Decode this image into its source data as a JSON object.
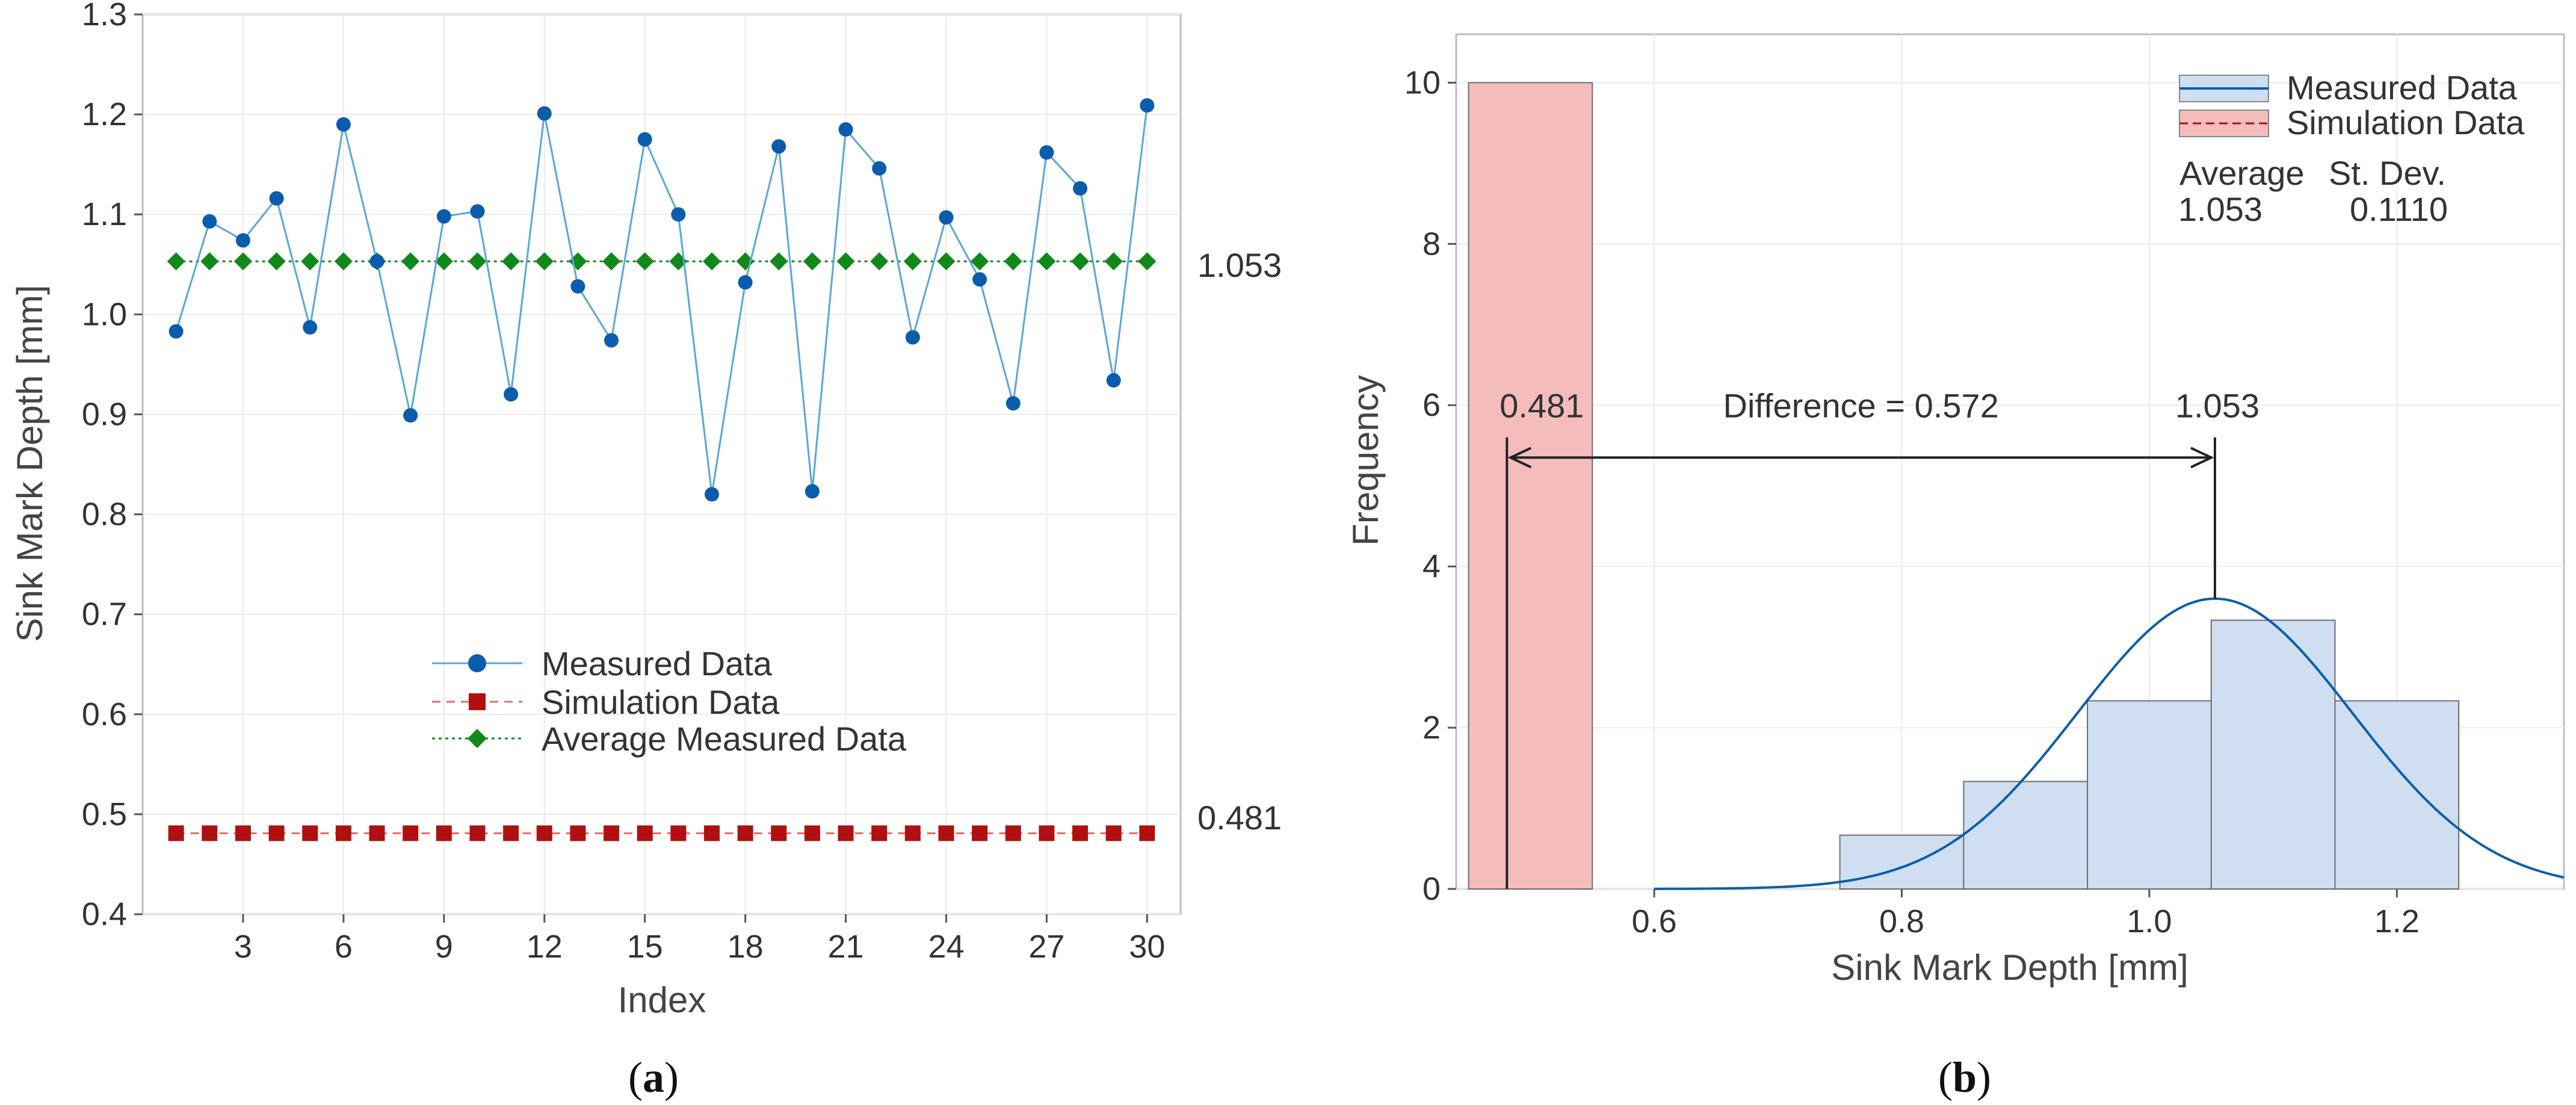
{
  "colors": {
    "measured": "#0b5cad",
    "measured_line": "#5aa6d6",
    "simulation": "#b01010",
    "simulation_line": "#e86a6a",
    "average": "#11881a",
    "hist_measured_fill": "#cfdff1",
    "hist_sim_fill": "#f5bcbc",
    "frame": "#bdbdbd"
  },
  "captions": {
    "a": "a",
    "b": "b"
  },
  "chart_data": [
    {
      "type": "line",
      "panel": "a",
      "title": "",
      "xlabel": "Index",
      "ylabel": "Sink Mark Depth [mm]",
      "xlim": [
        0,
        31
      ],
      "ylim": [
        0.4,
        1.3
      ],
      "xticks": [
        3,
        6,
        9,
        12,
        15,
        18,
        21,
        24,
        27,
        30
      ],
      "yticks": [
        0.4,
        0.5,
        0.6,
        0.7,
        0.8,
        0.9,
        1.0,
        1.1,
        1.2,
        1.3
      ],
      "ytick_labels": [
        "0.4",
        "0.5",
        "0.6",
        "0.7",
        "0.8",
        "0.9",
        "1.0",
        "1.1",
        "1.2",
        "1.3"
      ],
      "x": [
        1,
        2,
        3,
        4,
        5,
        6,
        7,
        8,
        9,
        10,
        11,
        12,
        13,
        14,
        15,
        16,
        17,
        18,
        19,
        20,
        21,
        22,
        23,
        24,
        25,
        26,
        27,
        28,
        29,
        30
      ],
      "series": [
        {
          "name": "Measured Data",
          "marker": "circle",
          "values": [
            0.983,
            1.093,
            1.074,
            1.116,
            0.987,
            1.19,
            1.053,
            0.899,
            1.098,
            1.103,
            0.92,
            1.201,
            1.028,
            0.974,
            1.175,
            1.1,
            0.82,
            1.032,
            1.168,
            0.823,
            1.185,
            1.146,
            0.977,
            1.097,
            1.035,
            0.911,
            1.162,
            1.126,
            0.934,
            1.209
          ]
        },
        {
          "name": "Simulation Data",
          "marker": "square",
          "values": [
            0.481,
            0.481,
            0.481,
            0.481,
            0.481,
            0.481,
            0.481,
            0.481,
            0.481,
            0.481,
            0.481,
            0.481,
            0.481,
            0.481,
            0.481,
            0.481,
            0.481,
            0.481,
            0.481,
            0.481,
            0.481,
            0.481,
            0.481,
            0.481,
            0.481,
            0.481,
            0.481,
            0.481,
            0.481,
            0.481
          ]
        },
        {
          "name": "Average Measured Data",
          "marker": "diamond",
          "values": [
            1.053,
            1.053,
            1.053,
            1.053,
            1.053,
            1.053,
            1.053,
            1.053,
            1.053,
            1.053,
            1.053,
            1.053,
            1.053,
            1.053,
            1.053,
            1.053,
            1.053,
            1.053,
            1.053,
            1.053,
            1.053,
            1.053,
            1.053,
            1.053,
            1.053,
            1.053,
            1.053,
            1.053,
            1.053,
            1.053
          ]
        }
      ],
      "end_labels": {
        "average": "1.053",
        "simulation": "0.481"
      },
      "legend": [
        "Measured Data",
        "Simulation Data",
        "Average Measured Data"
      ],
      "legend_position": "lower-center"
    },
    {
      "type": "bar",
      "panel": "b",
      "title": "",
      "xlabel": "Sink Mark Depth [mm]",
      "ylabel": "Frequency",
      "xlim": [
        0.44,
        1.335
      ],
      "ylim": [
        0,
        10.6
      ],
      "xticks": [
        0.6,
        0.8,
        1.0,
        1.2
      ],
      "xtick_labels": [
        "0.6",
        "0.8",
        "1.0",
        "1.2"
      ],
      "yticks": [
        0,
        2,
        4,
        6,
        8,
        10
      ],
      "ytick_labels": [
        "0",
        "2",
        "4",
        "6",
        "8",
        "10"
      ],
      "series": [
        {
          "name": "Measured Data",
          "bins": [
            [
              0.75,
              0.85
            ],
            [
              0.85,
              0.95
            ],
            [
              0.95,
              1.05
            ],
            [
              1.05,
              1.15
            ],
            [
              1.15,
              1.25
            ]
          ],
          "values": [
            0.667,
            1.333,
            2.333,
            3.333,
            2.333
          ],
          "fit_curve": {
            "type": "normal",
            "mean": 1.053,
            "stdev": 0.111,
            "peak": 3.6
          }
        },
        {
          "name": "Simulation Data",
          "bins": [
            [
              0.45,
              0.55
            ]
          ],
          "values": [
            10
          ],
          "reference_line": 0.481
        }
      ],
      "legend": [
        "Measured Data",
        "Simulation Data"
      ],
      "legend_position": "top-right",
      "stats": {
        "average_label": "Average",
        "stdev_label": "St. Dev.",
        "average": "1.053",
        "stdev": "0.1110"
      },
      "annotations": {
        "sim_value": "0.481",
        "meas_value": "1.053",
        "difference": "Difference = 0.572"
      }
    }
  ]
}
